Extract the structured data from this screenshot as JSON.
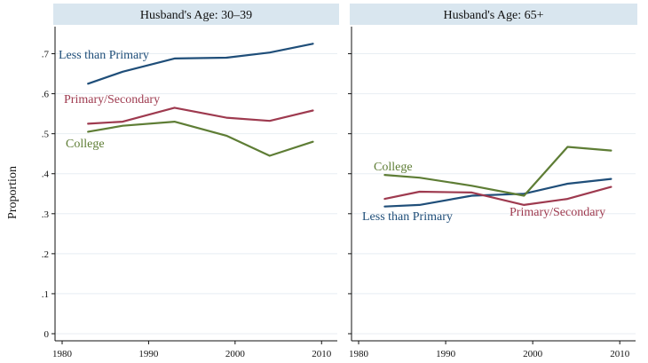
{
  "chart_data": {
    "type": "line",
    "ylabel": "Proportion",
    "ylim": [
      0,
      0.75
    ],
    "yticks": [
      0,
      0.1,
      0.2,
      0.3,
      0.4,
      0.5,
      0.6,
      0.7
    ],
    "ytick_labels": [
      "0",
      ".1",
      ".2",
      ".3",
      ".4",
      ".5",
      ".6",
      ".7"
    ],
    "xlim": [
      1980,
      2011
    ],
    "xticks": [
      1980,
      1990,
      2000,
      2010
    ],
    "xtick_labels": [
      "1980",
      "1990",
      "2000",
      "2010"
    ],
    "grid": true,
    "legend": "none (series labelled directly on the plot)",
    "colors": {
      "Less than Primary": "#1f4e79",
      "Primary/Secondary": "#9e3a4f",
      "College": "#5e7d35",
      "strip": "#d9e6ef",
      "grid": "#e8eef3",
      "background": "#ffffff"
    },
    "panels": [
      {
        "title": "Husband's Age: 30–39",
        "x": [
          1983,
          1987,
          1993,
          1999,
          2004,
          2009
        ],
        "series": [
          {
            "name": "Less than Primary",
            "values": [
              0.625,
              0.655,
              0.688,
              0.69,
              0.703,
              0.725
            ]
          },
          {
            "name": "Primary/Secondary",
            "values": [
              0.525,
              0.53,
              0.565,
              0.54,
              0.532,
              0.558
            ]
          },
          {
            "name": "College",
            "values": [
              0.505,
              0.52,
              0.53,
              0.495,
              0.445,
              0.48
            ]
          }
        ]
      },
      {
        "title": "Husband's Age: 65+",
        "x": [
          1983,
          1987,
          1993,
          1999,
          2004,
          2009
        ],
        "series": [
          {
            "name": "Less than Primary",
            "values": [
              0.318,
              0.322,
              0.345,
              0.35,
              0.375,
              0.387
            ]
          },
          {
            "name": "Primary/Secondary",
            "values": [
              0.337,
              0.355,
              0.353,
              0.322,
              0.337,
              0.367
            ]
          },
          {
            "name": "College",
            "values": [
              0.397,
              0.39,
              0.37,
              0.345,
              0.467,
              0.458
            ]
          }
        ]
      }
    ]
  }
}
